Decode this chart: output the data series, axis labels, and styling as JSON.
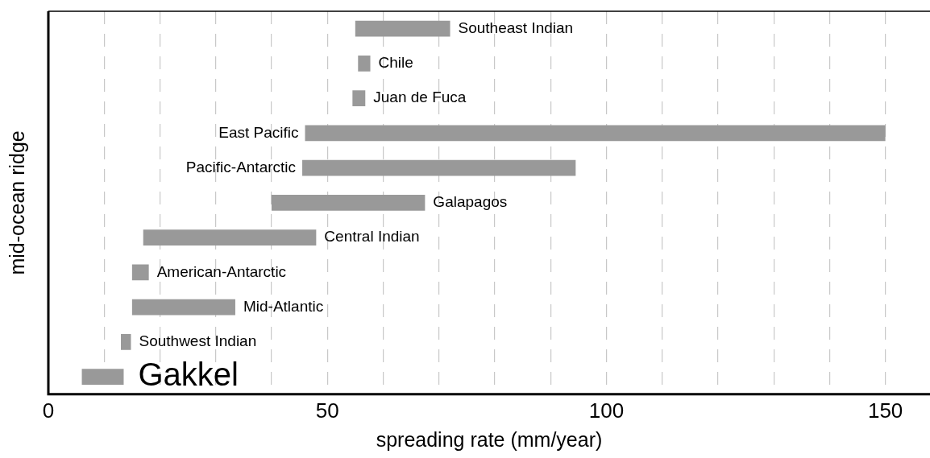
{
  "chart_data": {
    "type": "bar",
    "orientation": "horizontal",
    "xlabel": "spreading rate (mm/year)",
    "ylabel": "mid-ocean ridge",
    "categories": [
      "Southeast Indian",
      "Chile",
      "Juan de Fuca",
      "East Pacific",
      "Pacific-Antarctic",
      "Galapagos",
      "Central Indian",
      "American-Antarctic",
      "Mid-Atlantic",
      "Southwest Indian",
      "Gakkel"
    ],
    "base": [
      55,
      55.5,
      54.5,
      46,
      45.5,
      40,
      17,
      15,
      15,
      13,
      6
    ],
    "values": [
      17,
      2.2,
      2.3,
      104,
      49,
      27.5,
      31,
      3,
      18.5,
      1.8,
      7.5
    ],
    "color": "#999999",
    "xlim": [
      0,
      158
    ],
    "xticks": [
      0,
      {
        "value": 10,
        "label": null
      },
      {
        "value": 20,
        "label": null
      },
      {
        "value": 30,
        "label": null
      },
      {
        "value": 40,
        "label": null
      },
      50,
      {
        "value": 60,
        "label": null
      },
      {
        "value": 70,
        "label": null
      },
      {
        "value": 80,
        "label": null
      },
      {
        "value": 90,
        "label": null
      },
      100,
      {
        "value": 110,
        "label": null
      },
      {
        "value": 120,
        "label": null
      },
      {
        "value": 130,
        "label": null
      },
      {
        "value": 140,
        "label": null
      },
      150
    ],
    "grid": "x",
    "legend": false,
    "tick_labels": "x"
  }
}
